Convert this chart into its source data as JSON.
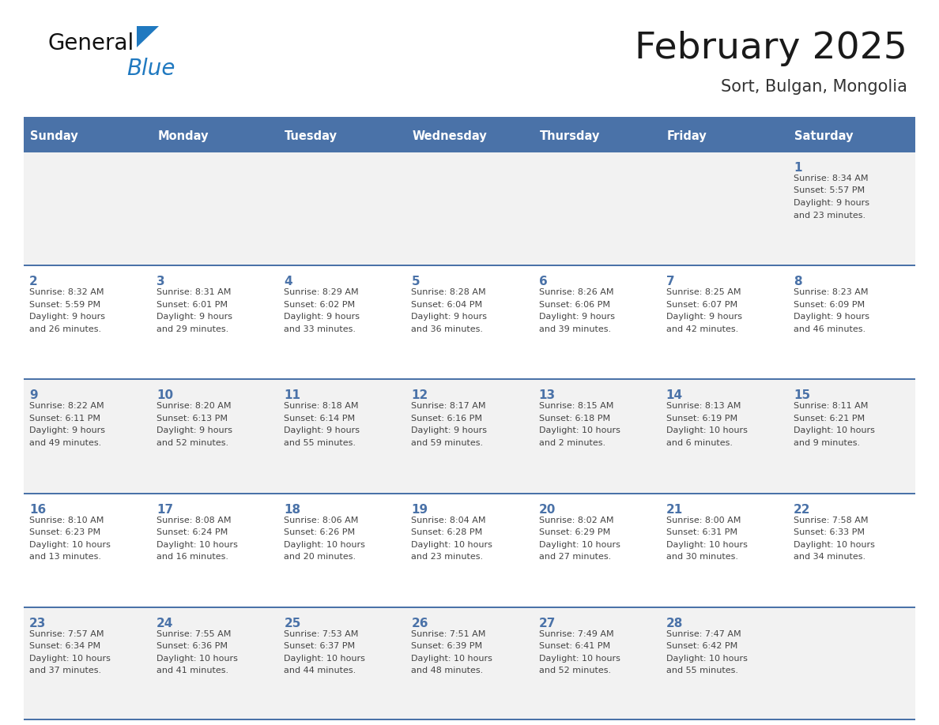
{
  "title": "February 2025",
  "subtitle": "Sort, Bulgan, Mongolia",
  "days_of_week": [
    "Sunday",
    "Monday",
    "Tuesday",
    "Wednesday",
    "Thursday",
    "Friday",
    "Saturday"
  ],
  "header_bg_color": "#4a72a8",
  "header_text_color": "#ffffff",
  "cell_bg_even": "#f2f2f2",
  "cell_bg_odd": "#ffffff",
  "row0_bg": "#f2f2f2",
  "grid_line_color": "#4a72a8",
  "title_color": "#1a1a1a",
  "subtitle_color": "#333333",
  "day_number_color": "#4a72a8",
  "cell_text_color": "#444444",
  "logo_general_color": "#111111",
  "logo_blue_color": "#2079c0",
  "calendar_data": [
    {
      "day": 1,
      "col": 6,
      "row": 0,
      "sunrise": "8:34 AM",
      "sunset": "5:57 PM",
      "daylight_a": "9 hours",
      "daylight_b": "and 23 minutes."
    },
    {
      "day": 2,
      "col": 0,
      "row": 1,
      "sunrise": "8:32 AM",
      "sunset": "5:59 PM",
      "daylight_a": "9 hours",
      "daylight_b": "and 26 minutes."
    },
    {
      "day": 3,
      "col": 1,
      "row": 1,
      "sunrise": "8:31 AM",
      "sunset": "6:01 PM",
      "daylight_a": "9 hours",
      "daylight_b": "and 29 minutes."
    },
    {
      "day": 4,
      "col": 2,
      "row": 1,
      "sunrise": "8:29 AM",
      "sunset": "6:02 PM",
      "daylight_a": "9 hours",
      "daylight_b": "and 33 minutes."
    },
    {
      "day": 5,
      "col": 3,
      "row": 1,
      "sunrise": "8:28 AM",
      "sunset": "6:04 PM",
      "daylight_a": "9 hours",
      "daylight_b": "and 36 minutes."
    },
    {
      "day": 6,
      "col": 4,
      "row": 1,
      "sunrise": "8:26 AM",
      "sunset": "6:06 PM",
      "daylight_a": "9 hours",
      "daylight_b": "and 39 minutes."
    },
    {
      "day": 7,
      "col": 5,
      "row": 1,
      "sunrise": "8:25 AM",
      "sunset": "6:07 PM",
      "daylight_a": "9 hours",
      "daylight_b": "and 42 minutes."
    },
    {
      "day": 8,
      "col": 6,
      "row": 1,
      "sunrise": "8:23 AM",
      "sunset": "6:09 PM",
      "daylight_a": "9 hours",
      "daylight_b": "and 46 minutes."
    },
    {
      "day": 9,
      "col": 0,
      "row": 2,
      "sunrise": "8:22 AM",
      "sunset": "6:11 PM",
      "daylight_a": "9 hours",
      "daylight_b": "and 49 minutes."
    },
    {
      "day": 10,
      "col": 1,
      "row": 2,
      "sunrise": "8:20 AM",
      "sunset": "6:13 PM",
      "daylight_a": "9 hours",
      "daylight_b": "and 52 minutes."
    },
    {
      "day": 11,
      "col": 2,
      "row": 2,
      "sunrise": "8:18 AM",
      "sunset": "6:14 PM",
      "daylight_a": "9 hours",
      "daylight_b": "and 55 minutes."
    },
    {
      "day": 12,
      "col": 3,
      "row": 2,
      "sunrise": "8:17 AM",
      "sunset": "6:16 PM",
      "daylight_a": "9 hours",
      "daylight_b": "and 59 minutes."
    },
    {
      "day": 13,
      "col": 4,
      "row": 2,
      "sunrise": "8:15 AM",
      "sunset": "6:18 PM",
      "daylight_a": "10 hours",
      "daylight_b": "and 2 minutes."
    },
    {
      "day": 14,
      "col": 5,
      "row": 2,
      "sunrise": "8:13 AM",
      "sunset": "6:19 PM",
      "daylight_a": "10 hours",
      "daylight_b": "and 6 minutes."
    },
    {
      "day": 15,
      "col": 6,
      "row": 2,
      "sunrise": "8:11 AM",
      "sunset": "6:21 PM",
      "daylight_a": "10 hours",
      "daylight_b": "and 9 minutes."
    },
    {
      "day": 16,
      "col": 0,
      "row": 3,
      "sunrise": "8:10 AM",
      "sunset": "6:23 PM",
      "daylight_a": "10 hours",
      "daylight_b": "and 13 minutes."
    },
    {
      "day": 17,
      "col": 1,
      "row": 3,
      "sunrise": "8:08 AM",
      "sunset": "6:24 PM",
      "daylight_a": "10 hours",
      "daylight_b": "and 16 minutes."
    },
    {
      "day": 18,
      "col": 2,
      "row": 3,
      "sunrise": "8:06 AM",
      "sunset": "6:26 PM",
      "daylight_a": "10 hours",
      "daylight_b": "and 20 minutes."
    },
    {
      "day": 19,
      "col": 3,
      "row": 3,
      "sunrise": "8:04 AM",
      "sunset": "6:28 PM",
      "daylight_a": "10 hours",
      "daylight_b": "and 23 minutes."
    },
    {
      "day": 20,
      "col": 4,
      "row": 3,
      "sunrise": "8:02 AM",
      "sunset": "6:29 PM",
      "daylight_a": "10 hours",
      "daylight_b": "and 27 minutes."
    },
    {
      "day": 21,
      "col": 5,
      "row": 3,
      "sunrise": "8:00 AM",
      "sunset": "6:31 PM",
      "daylight_a": "10 hours",
      "daylight_b": "and 30 minutes."
    },
    {
      "day": 22,
      "col": 6,
      "row": 3,
      "sunrise": "7:58 AM",
      "sunset": "6:33 PM",
      "daylight_a": "10 hours",
      "daylight_b": "and 34 minutes."
    },
    {
      "day": 23,
      "col": 0,
      "row": 4,
      "sunrise": "7:57 AM",
      "sunset": "6:34 PM",
      "daylight_a": "10 hours",
      "daylight_b": "and 37 minutes."
    },
    {
      "day": 24,
      "col": 1,
      "row": 4,
      "sunrise": "7:55 AM",
      "sunset": "6:36 PM",
      "daylight_a": "10 hours",
      "daylight_b": "and 41 minutes."
    },
    {
      "day": 25,
      "col": 2,
      "row": 4,
      "sunrise": "7:53 AM",
      "sunset": "6:37 PM",
      "daylight_a": "10 hours",
      "daylight_b": "and 44 minutes."
    },
    {
      "day": 26,
      "col": 3,
      "row": 4,
      "sunrise": "7:51 AM",
      "sunset": "6:39 PM",
      "daylight_a": "10 hours",
      "daylight_b": "and 48 minutes."
    },
    {
      "day": 27,
      "col": 4,
      "row": 4,
      "sunrise": "7:49 AM",
      "sunset": "6:41 PM",
      "daylight_a": "10 hours",
      "daylight_b": "and 52 minutes."
    },
    {
      "day": 28,
      "col": 5,
      "row": 4,
      "sunrise": "7:47 AM",
      "sunset": "6:42 PM",
      "daylight_a": "10 hours",
      "daylight_b": "and 55 minutes."
    }
  ]
}
